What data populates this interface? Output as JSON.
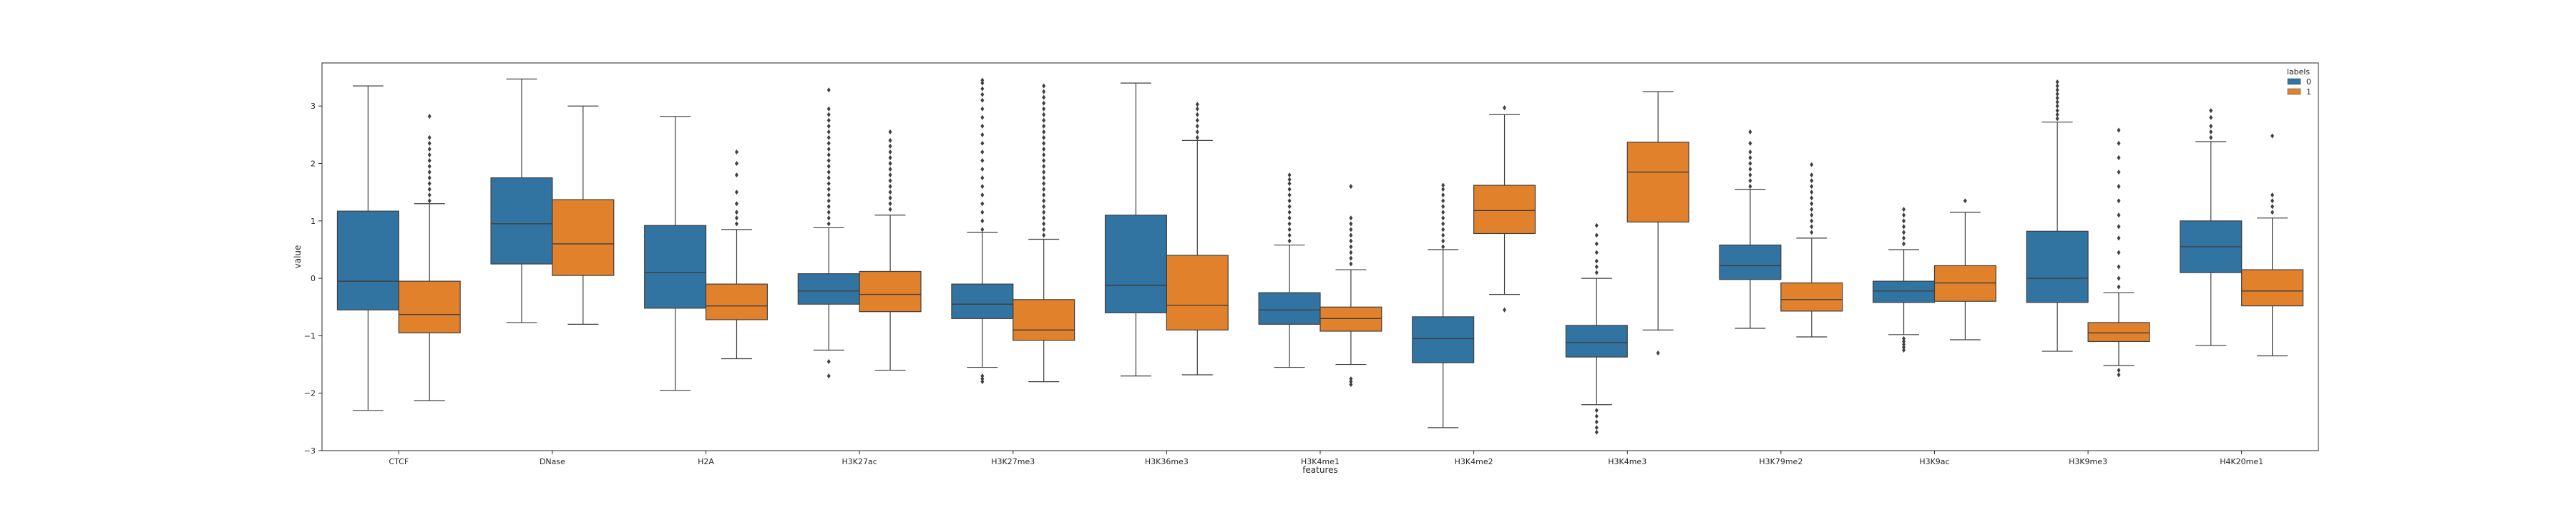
{
  "chart_data": {
    "type": "box",
    "title": "",
    "xlabel": "features",
    "ylabel": "value",
    "ylim": [
      -3.0,
      3.75
    ],
    "yticks": [
      -3,
      -2,
      -1,
      0,
      1,
      2,
      3
    ],
    "grid": false,
    "legend": {
      "title": "labels",
      "entries": [
        "0",
        "1"
      ],
      "placement": "top-right"
    },
    "colors": {
      "0": "#3274a1",
      "1": "#e1812c",
      "line": "#3f3f3f"
    },
    "categories": [
      "CTCF",
      "DNase",
      "H2A",
      "H3K27ac",
      "H3K27me3",
      "H3K36me3",
      "H3K4me1",
      "H3K4me2",
      "H3K4me3",
      "H3K79me2",
      "H3K9ac",
      "H3K9me3",
      "H4K20me1"
    ],
    "series": [
      {
        "name": "0",
        "boxes": [
          {
            "whislo": -2.3,
            "q1": -0.55,
            "med": -0.05,
            "q3": 1.17,
            "whishi": 3.35,
            "fliers": []
          },
          {
            "whislo": -0.77,
            "q1": 0.25,
            "med": 0.95,
            "q3": 1.75,
            "whishi": 3.47,
            "fliers": []
          },
          {
            "whislo": -1.95,
            "q1": -0.52,
            "med": 0.1,
            "q3": 0.92,
            "whishi": 2.82,
            "fliers": []
          },
          {
            "whislo": -1.25,
            "q1": -0.45,
            "med": -0.22,
            "q3": 0.08,
            "whishi": 0.88,
            "fliers": [
              -1.45,
              -1.7,
              0.95,
              1.05,
              1.15,
              1.25,
              1.35,
              1.45,
              1.55,
              1.65,
              1.75,
              1.85,
              1.95,
              2.05,
              2.15,
              2.25,
              2.35,
              2.45,
              2.55,
              2.65,
              2.75,
              2.85,
              2.95,
              3.28
            ]
          },
          {
            "whislo": -1.55,
            "q1": -0.7,
            "med": -0.45,
            "q3": -0.1,
            "whishi": 0.8,
            "fliers": [
              -1.7,
              -1.75,
              -1.8,
              0.85,
              1.0,
              1.15,
              1.3,
              1.45,
              1.6,
              1.75,
              1.9,
              2.05,
              2.2,
              2.35,
              2.5,
              2.65,
              2.8,
              2.95,
              3.1,
              3.2,
              3.3,
              3.4,
              3.45
            ]
          },
          {
            "whislo": -1.7,
            "q1": -0.6,
            "med": -0.12,
            "q3": 1.1,
            "whishi": 3.4,
            "fliers": []
          },
          {
            "whislo": -1.55,
            "q1": -0.8,
            "med": -0.55,
            "q3": -0.25,
            "whishi": 0.58,
            "fliers": [
              0.65,
              0.75,
              0.85,
              0.95,
              1.05,
              1.15,
              1.25,
              1.35,
              1.45,
              1.55,
              1.65,
              1.72,
              1.8
            ]
          },
          {
            "whislo": -2.6,
            "q1": -1.47,
            "med": -1.05,
            "q3": -0.67,
            "whishi": 0.5,
            "fliers": [
              0.55,
              0.65,
              0.75,
              0.85,
              0.95,
              1.05,
              1.15,
              1.25,
              1.35,
              1.45,
              1.55,
              1.62
            ]
          },
          {
            "whislo": -2.2,
            "q1": -1.37,
            "med": -1.12,
            "q3": -0.82,
            "whishi": 0.0,
            "fliers": [
              -2.3,
              -2.4,
              -2.5,
              -2.6,
              -2.68,
              0.1,
              0.2,
              0.3,
              0.45,
              0.6,
              0.75,
              0.92
            ]
          },
          {
            "whislo": -0.87,
            "q1": -0.02,
            "med": 0.22,
            "q3": 0.58,
            "whishi": 1.55,
            "fliers": [
              1.6,
              1.7,
              1.8,
              1.9,
              2.0,
              2.1,
              2.2,
              2.35,
              2.55
            ]
          },
          {
            "whislo": -0.98,
            "q1": -0.42,
            "med": -0.22,
            "q3": -0.05,
            "whishi": 0.5,
            "fliers": [
              -1.05,
              -1.1,
              -1.15,
              -1.2,
              -1.25,
              0.6,
              0.7,
              0.8,
              0.9,
              1.0,
              1.1,
              1.2
            ]
          },
          {
            "whislo": -1.27,
            "q1": -0.42,
            "med": 0.0,
            "q3": 0.82,
            "whishi": 2.72,
            "fliers": [
              2.78,
              2.85,
              2.92,
              3.0,
              3.07,
              3.14,
              3.21,
              3.28,
              3.35,
              3.42
            ]
          },
          {
            "whislo": -1.17,
            "q1": 0.1,
            "med": 0.55,
            "q3": 1.0,
            "whishi": 2.38,
            "fliers": [
              2.45,
              2.55,
              2.65,
              2.8,
              2.92
            ]
          }
        ]
      },
      {
        "name": "1",
        "boxes": [
          {
            "whislo": -2.13,
            "q1": -0.95,
            "med": -0.63,
            "q3": -0.05,
            "whishi": 1.3,
            "fliers": [
              1.35,
              1.45,
              1.55,
              1.65,
              1.75,
              1.85,
              1.95,
              2.05,
              2.15,
              2.25,
              2.35,
              2.45,
              2.82
            ]
          },
          {
            "whislo": -0.8,
            "q1": 0.05,
            "med": 0.6,
            "q3": 1.37,
            "whishi": 3.0,
            "fliers": []
          },
          {
            "whislo": -1.4,
            "q1": -0.72,
            "med": -0.48,
            "q3": -0.1,
            "whishi": 0.85,
            "fliers": [
              0.95,
              1.05,
              1.15,
              1.3,
              1.5,
              1.8,
              2.0,
              2.2
            ]
          },
          {
            "whislo": -1.6,
            "q1": -0.58,
            "med": -0.28,
            "q3": 0.12,
            "whishi": 1.1,
            "fliers": [
              1.2,
              1.3,
              1.4,
              1.5,
              1.6,
              1.7,
              1.8,
              1.9,
              2.0,
              2.1,
              2.2,
              2.3,
              2.4,
              2.55
            ]
          },
          {
            "whislo": -1.8,
            "q1": -1.08,
            "med": -0.9,
            "q3": -0.37,
            "whishi": 0.68,
            "fliers": [
              0.75,
              0.85,
              0.95,
              1.05,
              1.15,
              1.25,
              1.35,
              1.45,
              1.55,
              1.65,
              1.75,
              1.85,
              1.95,
              2.05,
              2.15,
              2.25,
              2.35,
              2.45,
              2.55,
              2.65,
              2.75,
              2.85,
              2.95,
              3.05,
              3.15,
              3.25,
              3.35
            ]
          },
          {
            "whislo": -1.68,
            "q1": -0.9,
            "med": -0.47,
            "q3": 0.4,
            "whishi": 2.4,
            "fliers": [
              2.45,
              2.55,
              2.65,
              2.75,
              2.85,
              2.95,
              3.03
            ]
          },
          {
            "whislo": -1.5,
            "q1": -0.92,
            "med": -0.7,
            "q3": -0.5,
            "whishi": 0.15,
            "fliers": [
              -1.75,
              -1.8,
              -1.85,
              0.25,
              0.35,
              0.45,
              0.55,
              0.65,
              0.75,
              0.85,
              0.95,
              1.05,
              1.6
            ]
          },
          {
            "whislo": -0.28,
            "q1": 0.78,
            "med": 1.18,
            "q3": 1.62,
            "whishi": 2.85,
            "fliers": [
              -0.55,
              2.97
            ]
          },
          {
            "whislo": -0.9,
            "q1": 0.98,
            "med": 1.85,
            "q3": 2.37,
            "whishi": 3.25,
            "fliers": [
              -1.3
            ]
          },
          {
            "whislo": -1.02,
            "q1": -0.57,
            "med": -0.37,
            "q3": -0.08,
            "whishi": 0.7,
            "fliers": [
              0.8,
              0.9,
              1.0,
              1.1,
              1.2,
              1.3,
              1.4,
              1.5,
              1.6,
              1.7,
              1.8,
              1.98
            ]
          },
          {
            "whislo": -1.07,
            "q1": -0.4,
            "med": -0.08,
            "q3": 0.22,
            "whishi": 1.15,
            "fliers": [
              1.35
            ]
          },
          {
            "whislo": -1.52,
            "q1": -1.1,
            "med": -0.95,
            "q3": -0.77,
            "whishi": -0.25,
            "fliers": [
              -1.6,
              -1.68,
              -0.15,
              0.0,
              0.2,
              0.45,
              0.7,
              0.9,
              1.1,
              1.35,
              1.6,
              1.85,
              2.1,
              2.35,
              2.58
            ]
          },
          {
            "whislo": -1.35,
            "q1": -0.48,
            "med": -0.22,
            "q3": 0.15,
            "whishi": 1.05,
            "fliers": [
              1.15,
              1.25,
              1.35,
              1.45,
              2.48
            ]
          }
        ]
      }
    ]
  }
}
